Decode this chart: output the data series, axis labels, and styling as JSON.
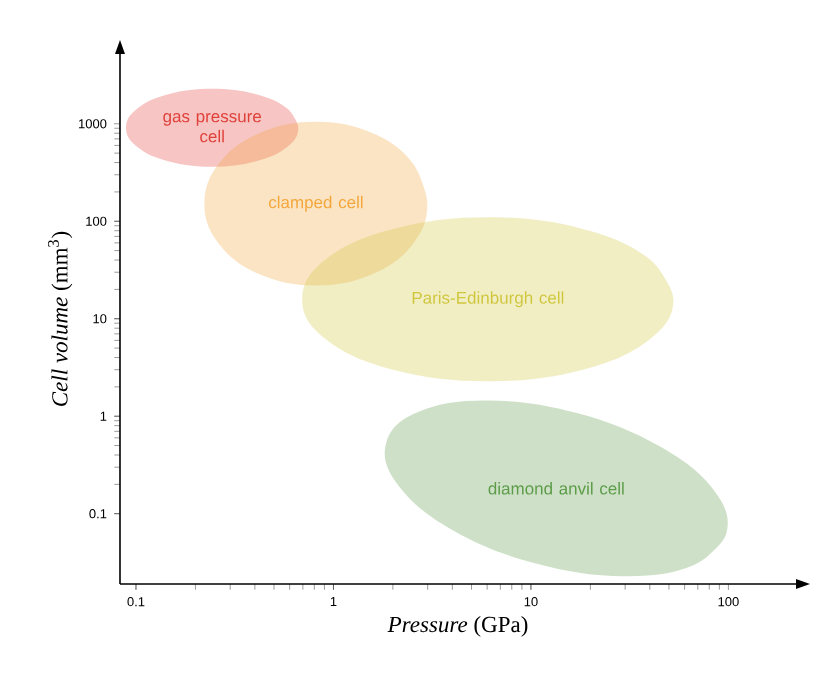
{
  "chart_data": {
    "type": "area",
    "xlabel": "*Pressure* (GPa)",
    "ylabel": "*Cell volume* (mm$^{3}$)",
    "log": "xy",
    "grid": false,
    "xlim": [
      0.083,
      220
    ],
    "ylim": [
      0.019,
      5200
    ],
    "xticks": [
      0.1,
      1,
      10,
      100
    ],
    "yticks": [
      0.1,
      1,
      10,
      100,
      1000
    ],
    "series": [
      {
        "name": "gas pressure cell",
        "color": "#e0403a",
        "x": [
          0.664,
          0.581,
          0.402,
          0.243,
          0.147,
          0.102,
          0.089,
          0.102,
          0.147,
          0.243,
          0.402,
          0.581
        ],
        "values": [
          912,
          1445,
          2023,
          2291,
          2023,
          1445,
          912,
          575,
          411,
          363,
          411,
          575
        ]
      },
      {
        "name": "clamped cell",
        "color": "#f3a63a",
        "x": [
          2.99,
          2.51,
          1.56,
          0.815,
          0.426,
          0.265,
          0.222,
          0.265,
          0.426,
          0.815,
          1.56,
          2.51
        ],
        "values": [
          151,
          398,
          807,
          1047,
          807,
          398,
          151,
          57.5,
          28.4,
          21.9,
          28.4,
          57.5
        ]
      },
      {
        "name": "Paris-Edinburgh cell",
        "color": "#cfc63c",
        "x": [
          52.7,
          39.4,
          17.9,
          6.05,
          2.05,
          0.929,
          0.695,
          0.929,
          2.05,
          6.05,
          17.9,
          39.4
        ],
        "values": [
          15.8,
          41.7,
          84.5,
          110,
          84.5,
          41.7,
          15.8,
          6.03,
          2.97,
          2.29,
          2.97,
          6.03
        ]
      },
      {
        "name": "diamond anvil cell",
        "color": "#5c9c48",
        "x": [
          97.5,
          66.5,
          29.5,
          10.6,
          4.06,
          2.15,
          1.85,
          2.72,
          6.12,
          17.1,
          44.6,
          84.3
        ],
        "values": [
          0.0622,
          0.0295,
          0.0228,
          0.0308,
          0.067,
          0.19,
          0.532,
          1.12,
          1.45,
          1.08,
          0.494,
          0.175
        ]
      }
    ]
  }
}
